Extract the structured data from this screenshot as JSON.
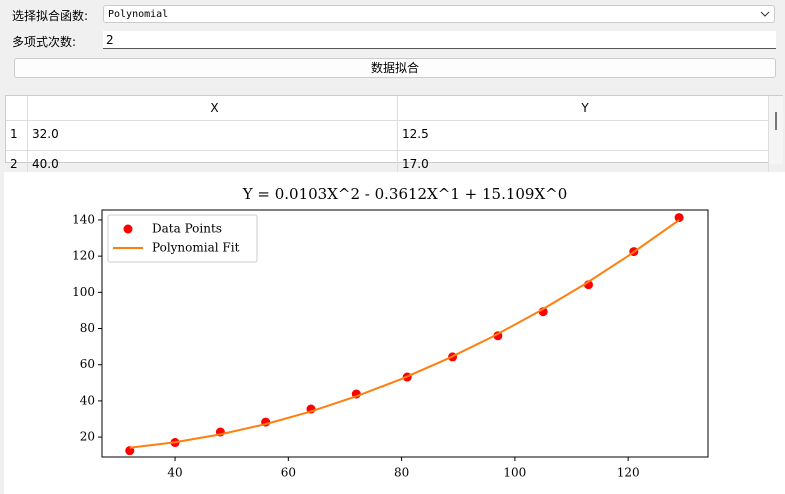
{
  "controls": {
    "function_label": "选择拟合函数:",
    "function_value": "Polynomial",
    "degree_label": "多项式次数:",
    "degree_value": "2",
    "fit_button": "数据拟合"
  },
  "table": {
    "columns": [
      "X",
      "Y"
    ],
    "row_headers": [
      "1",
      "2"
    ],
    "rows": [
      [
        "32.0",
        "12.5"
      ],
      [
        "40.0",
        "17.0"
      ]
    ]
  },
  "chart_data": {
    "type": "scatter",
    "title": "Y = 0.0103X^2 - 0.3612X^1 + 15.109X^0",
    "series": [
      {
        "name": "Data Points",
        "type": "scatter",
        "color": "#ff0000",
        "x": [
          32,
          40,
          48,
          56,
          64,
          72,
          81,
          89,
          97,
          105,
          113,
          121,
          129
        ],
        "values": [
          12.5,
          17.0,
          22.8,
          28.3,
          35.5,
          43.8,
          53.2,
          64.3,
          76.0,
          89.3,
          104.2,
          122.5,
          141.3
        ]
      },
      {
        "name": "Polynomial Fit",
        "type": "line",
        "color": "#ff7f0e",
        "x": [
          32,
          40,
          48,
          56,
          64,
          72,
          80,
          88,
          96,
          104,
          112,
          120,
          129
        ],
        "values": [
          14.1,
          17.14,
          21.5,
          27.18,
          34.18,
          42.51,
          52.13,
          63.12,
          75.36,
          88.98,
          103.86,
          120.09,
          139.92
        ]
      }
    ],
    "xlim": [
      27.1,
      134.1
    ],
    "ylim": [
      9,
      145.5
    ],
    "xticks": [
      40,
      60,
      80,
      100,
      120
    ],
    "yticks": [
      20,
      40,
      60,
      80,
      100,
      120,
      140
    ],
    "legend": "upper left"
  }
}
